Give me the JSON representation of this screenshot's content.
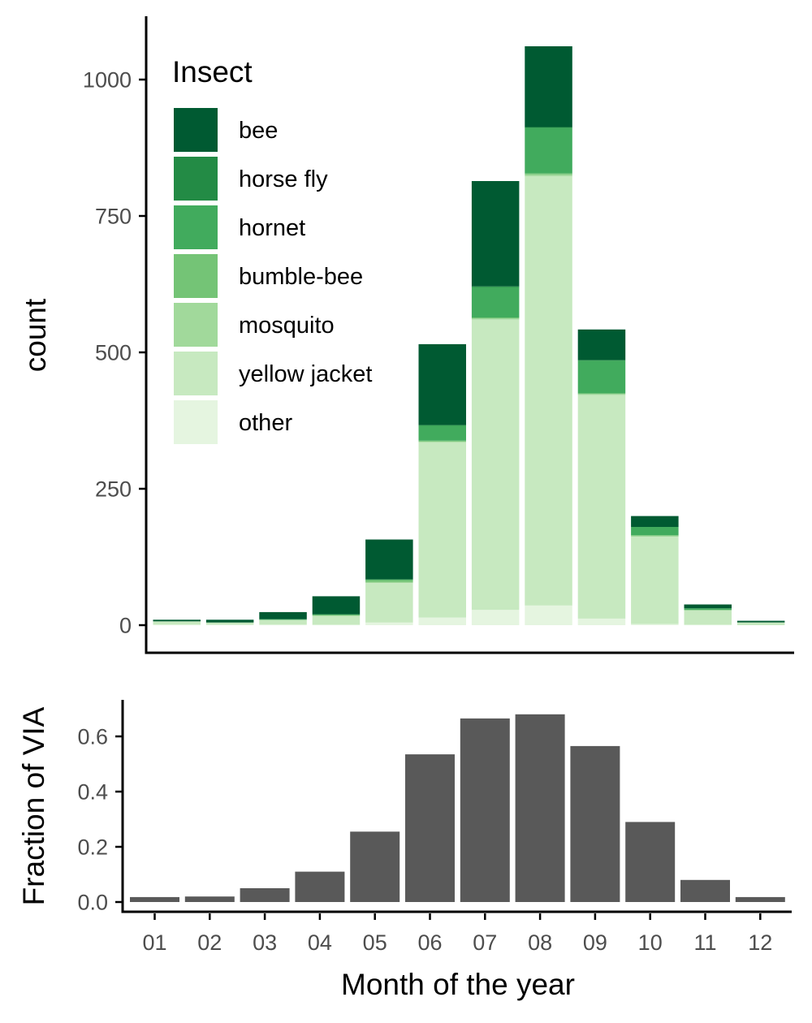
{
  "chart_data": [
    {
      "type": "bar",
      "stacked": true,
      "ylabel": "count",
      "xlabel": "",
      "ylim": [
        0,
        1100
      ],
      "yticks": [
        0,
        250,
        500,
        750,
        1000
      ],
      "grid": false,
      "legend_position": "top-left",
      "legend_title": "Insect",
      "categories": [
        "01",
        "02",
        "03",
        "04",
        "05",
        "06",
        "07",
        "08",
        "09",
        "10",
        "11",
        "12"
      ],
      "series": [
        {
          "name": "other",
          "color": "#e5f5e0",
          "values": [
            1,
            1,
            1,
            1,
            5,
            14,
            28,
            36,
            12,
            2,
            1,
            0
          ]
        },
        {
          "name": "yellow jacket",
          "color": "#c7e9c0",
          "values": [
            6,
            4,
            9,
            16,
            72,
            321,
            532,
            787,
            410,
            160,
            26,
            5
          ]
        },
        {
          "name": "mosquito",
          "color": "#a1d99b",
          "values": [
            0,
            0,
            0,
            1,
            2,
            2,
            2,
            3,
            2,
            2,
            1,
            0
          ]
        },
        {
          "name": "bumble-bee",
          "color": "#74c476",
          "values": [
            0,
            0,
            0,
            1,
            4,
            1,
            2,
            2,
            1,
            1,
            0,
            0
          ]
        },
        {
          "name": "hornet",
          "color": "#41ab5d",
          "values": [
            0,
            0,
            1,
            1,
            1,
            28,
            56,
            84,
            60,
            15,
            3,
            0
          ]
        },
        {
          "name": "horse fly",
          "color": "#238b45",
          "values": [
            0,
            0,
            0,
            0,
            0,
            1,
            1,
            1,
            1,
            0,
            0,
            0
          ]
        },
        {
          "name": "bee",
          "color": "#005a32",
          "values": [
            3,
            5,
            13,
            33,
            73,
            148,
            193,
            148,
            56,
            20,
            7,
            3
          ]
        }
      ]
    },
    {
      "type": "bar",
      "ylabel": "Fraction of VIA",
      "xlabel": "Month of the year",
      "ylim": [
        -0.02,
        0.72
      ],
      "yticks": [
        "0.0",
        "0.2",
        "0.4",
        "0.6"
      ],
      "grid": false,
      "color": "#595959",
      "categories": [
        "01",
        "02",
        "03",
        "04",
        "05",
        "06",
        "07",
        "08",
        "09",
        "10",
        "11",
        "12"
      ],
      "values": [
        0.018,
        0.02,
        0.05,
        0.11,
        0.255,
        0.535,
        0.665,
        0.68,
        0.565,
        0.29,
        0.08,
        0.018
      ]
    }
  ]
}
